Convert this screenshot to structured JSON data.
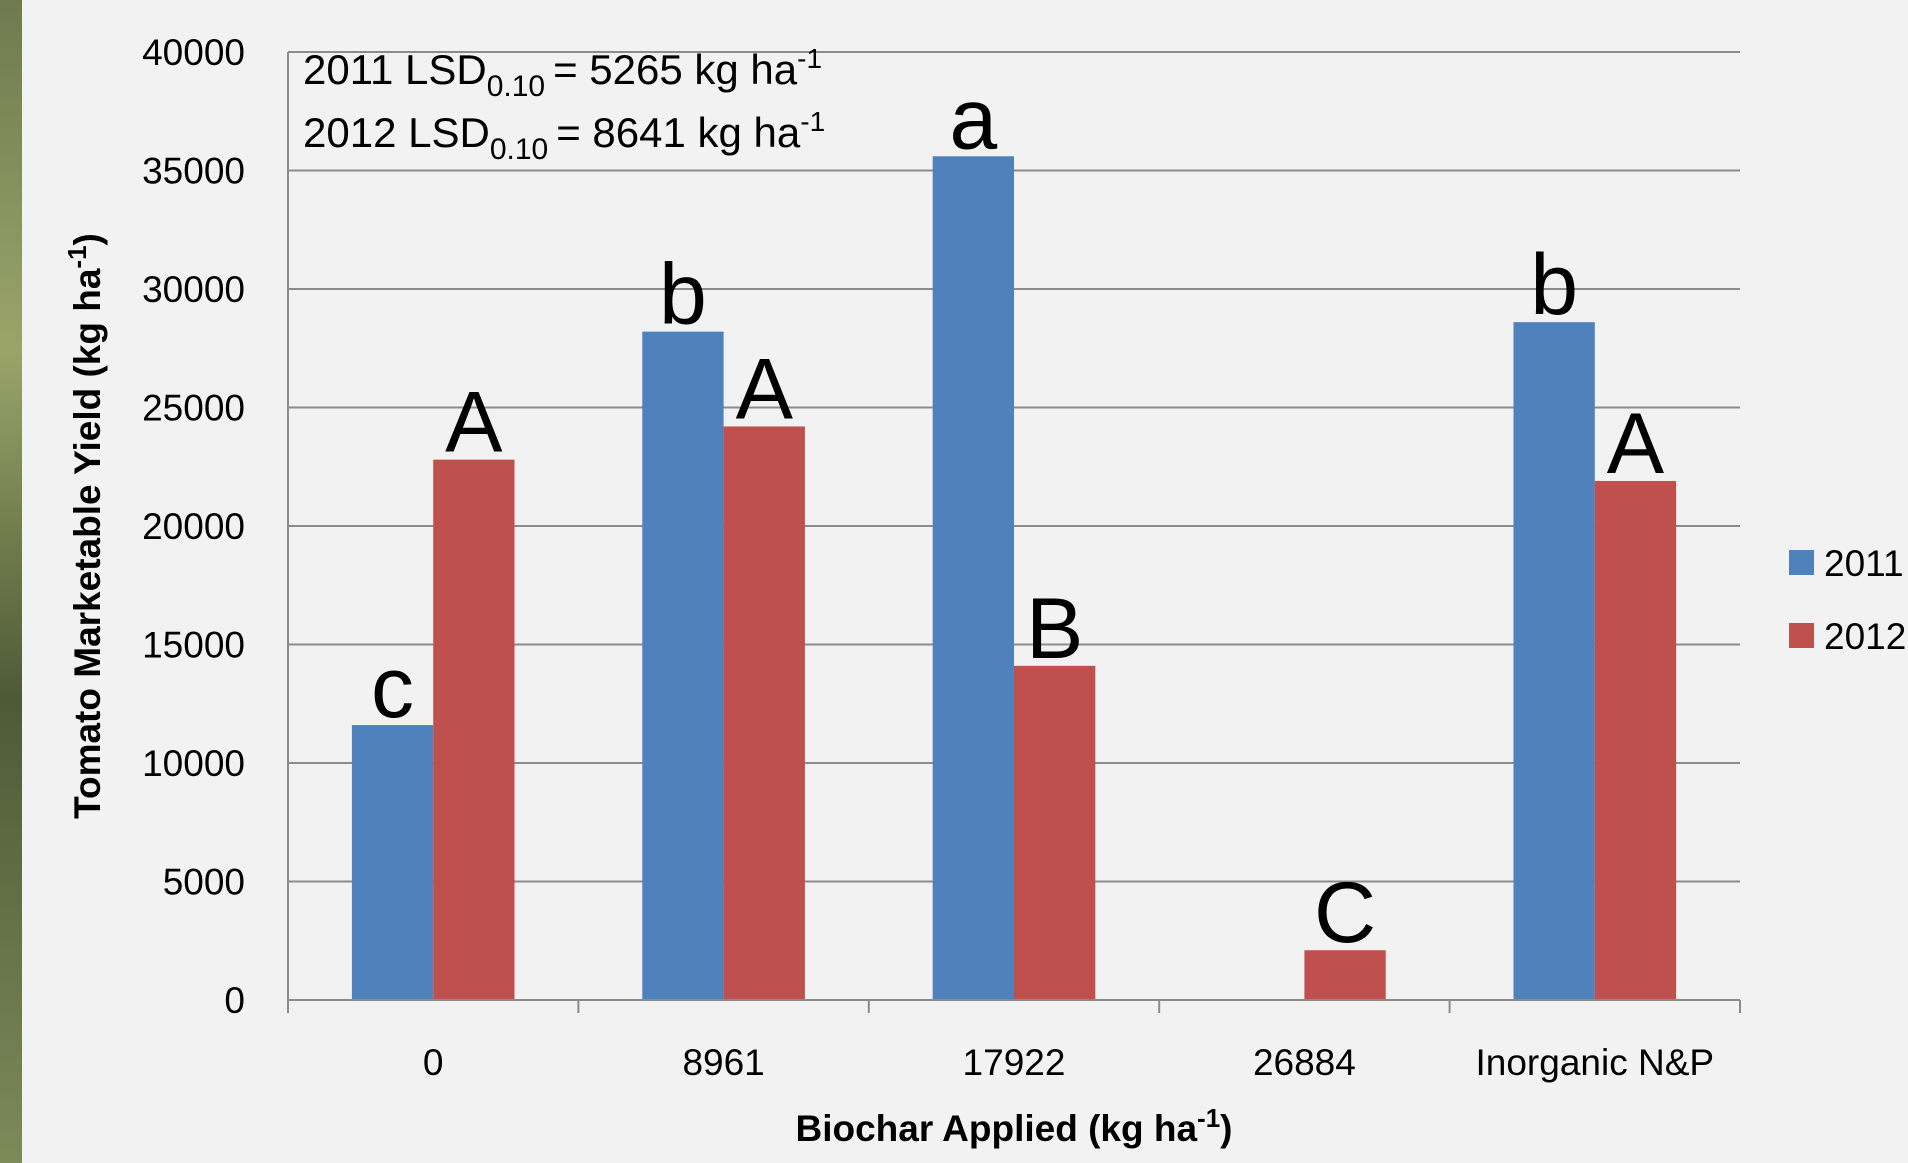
{
  "chart_data": {
    "type": "bar",
    "x_label": {
      "text": "Biochar Applied (kg ha",
      "sup": "-1",
      "end": ")"
    },
    "y_label": {
      "text": "Tomato Marketable Yield (kg ha",
      "sup": "-1",
      "end": ")"
    },
    "annotations": [
      {
        "text": "2011 LSD",
        "sub": "0.10",
        "rest": "= 5265 kg ha",
        "sup": "-1"
      },
      {
        "text": "2012 LSD",
        "sub": "0.10",
        "rest": "= 8641 kg ha",
        "sup": "-1"
      }
    ],
    "categories": [
      "0",
      "8961",
      "17922",
      "26884",
      "Inorganic N&P"
    ],
    "series": [
      {
        "name": "2011",
        "color": "#4f81bd",
        "values": [
          11600,
          28200,
          35600,
          null,
          28600
        ],
        "letters": [
          "c",
          "b",
          "a",
          null,
          "b"
        ]
      },
      {
        "name": "2012",
        "color": "#c0504d",
        "values": [
          22800,
          24200,
          14100,
          2100,
          21900
        ],
        "letters": [
          "A",
          "A",
          "B",
          "C",
          "A"
        ]
      }
    ],
    "ylim": [
      0,
      40000
    ],
    "yticks": [
      0,
      5000,
      10000,
      15000,
      20000,
      25000,
      30000,
      35000,
      40000
    ],
    "grid": true,
    "legend": "right"
  }
}
